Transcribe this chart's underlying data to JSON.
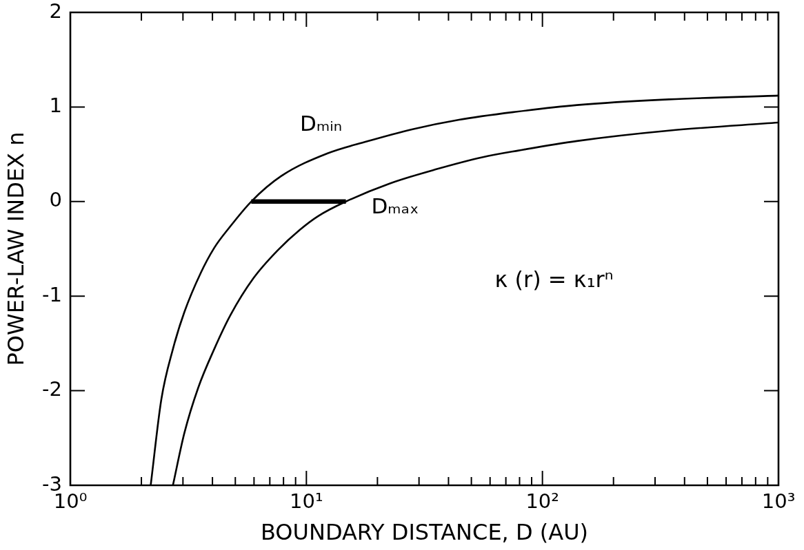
{
  "chart_data": {
    "type": "line",
    "xlabel": "BOUNDARY DISTANCE, D (AU)",
    "ylabel": "POWER-LAW INDEX n",
    "log": "x",
    "xlim": [
      1,
      1000
    ],
    "ylim": [
      -3,
      2
    ],
    "xticks": [
      {
        "value": 1,
        "label": "10⁰"
      },
      {
        "value": 2,
        "label": null
      },
      {
        "value": 3,
        "label": null
      },
      {
        "value": 4,
        "label": null
      },
      {
        "value": 5,
        "label": null
      },
      {
        "value": 6,
        "label": null
      },
      {
        "value": 7,
        "label": null
      },
      {
        "value": 8,
        "label": null
      },
      {
        "value": 9,
        "label": null
      },
      {
        "value": 10,
        "label": "10¹"
      },
      {
        "value": 20,
        "label": null
      },
      {
        "value": 30,
        "label": null
      },
      {
        "value": 40,
        "label": null
      },
      {
        "value": 50,
        "label": null
      },
      {
        "value": 60,
        "label": null
      },
      {
        "value": 70,
        "label": null
      },
      {
        "value": 80,
        "label": null
      },
      {
        "value": 90,
        "label": null
      },
      {
        "value": 100,
        "label": "10²"
      },
      {
        "value": 200,
        "label": null
      },
      {
        "value": 300,
        "label": null
      },
      {
        "value": 400,
        "label": null
      },
      {
        "value": 500,
        "label": null
      },
      {
        "value": 600,
        "label": null
      },
      {
        "value": 700,
        "label": null
      },
      {
        "value": 800,
        "label": null
      },
      {
        "value": 900,
        "label": null
      },
      {
        "value": 1000,
        "label": "10³"
      }
    ],
    "yticks": [
      -3,
      -2,
      -1,
      0,
      1,
      2
    ],
    "grid": false,
    "legend": false,
    "marker": "none",
    "series": [
      {
        "name": "Dₘᵢₙ",
        "color": "#000000",
        "x": [
          2.19,
          2.43,
          2.72,
          3.04,
          3.56,
          4.07,
          4.7,
          5.84,
          7.83,
          12.3,
          18,
          28.2,
          44.3,
          77.8,
          140,
          343,
          1000
        ],
        "values": [
          -3,
          -2.09,
          -1.56,
          -1.17,
          -0.76,
          -0.49,
          -0.28,
          0,
          0.27,
          0.51,
          0.635,
          0.765,
          0.865,
          0.95,
          1.02,
          1.08,
          1.12
        ]
      },
      {
        "name": "Dₘₐₓ",
        "color": "#000000",
        "x": [
          2.72,
          3.04,
          3.48,
          4.07,
          4.77,
          5.97,
          7.6,
          9.37,
          11.2,
          14.7,
          22.5,
          35.3,
          56,
          79.4,
          140,
          343,
          1000
        ],
        "values": [
          -3,
          -2.45,
          -1.97,
          -1.56,
          -1.2,
          -0.81,
          -0.51,
          -0.3,
          -0.155,
          0,
          0.19,
          0.34,
          0.47,
          0.54,
          0.64,
          0.75,
          0.835
        ]
      },
      {
        "color": "#000000",
        "x": [
          5.84,
          14.7
        ],
        "values": [
          0,
          0
        ]
      }
    ],
    "annotations": [
      "κ (r) = κ₁rⁿ"
    ]
  }
}
